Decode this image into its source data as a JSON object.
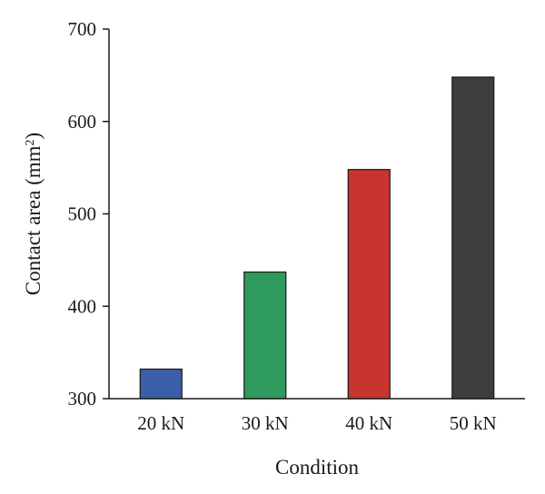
{
  "chart_data": {
    "type": "bar",
    "categories": [
      "20 kN",
      "30 kN",
      "40 kN",
      "50 kN"
    ],
    "values": [
      332,
      437,
      548,
      648
    ],
    "colors": [
      "#3a5ea8",
      "#2e9a5e",
      "#c8342e",
      "#3d3d3d"
    ],
    "xlabel": "Condition",
    "ylabel_main": "Contact area (mm",
    "ylabel_sup": "2",
    "ylabel_tail": ")",
    "ylim": [
      300,
      700
    ],
    "yticks": [
      "300",
      "400",
      "500",
      "600",
      "700"
    ],
    "grid": false,
    "legend": "none"
  }
}
